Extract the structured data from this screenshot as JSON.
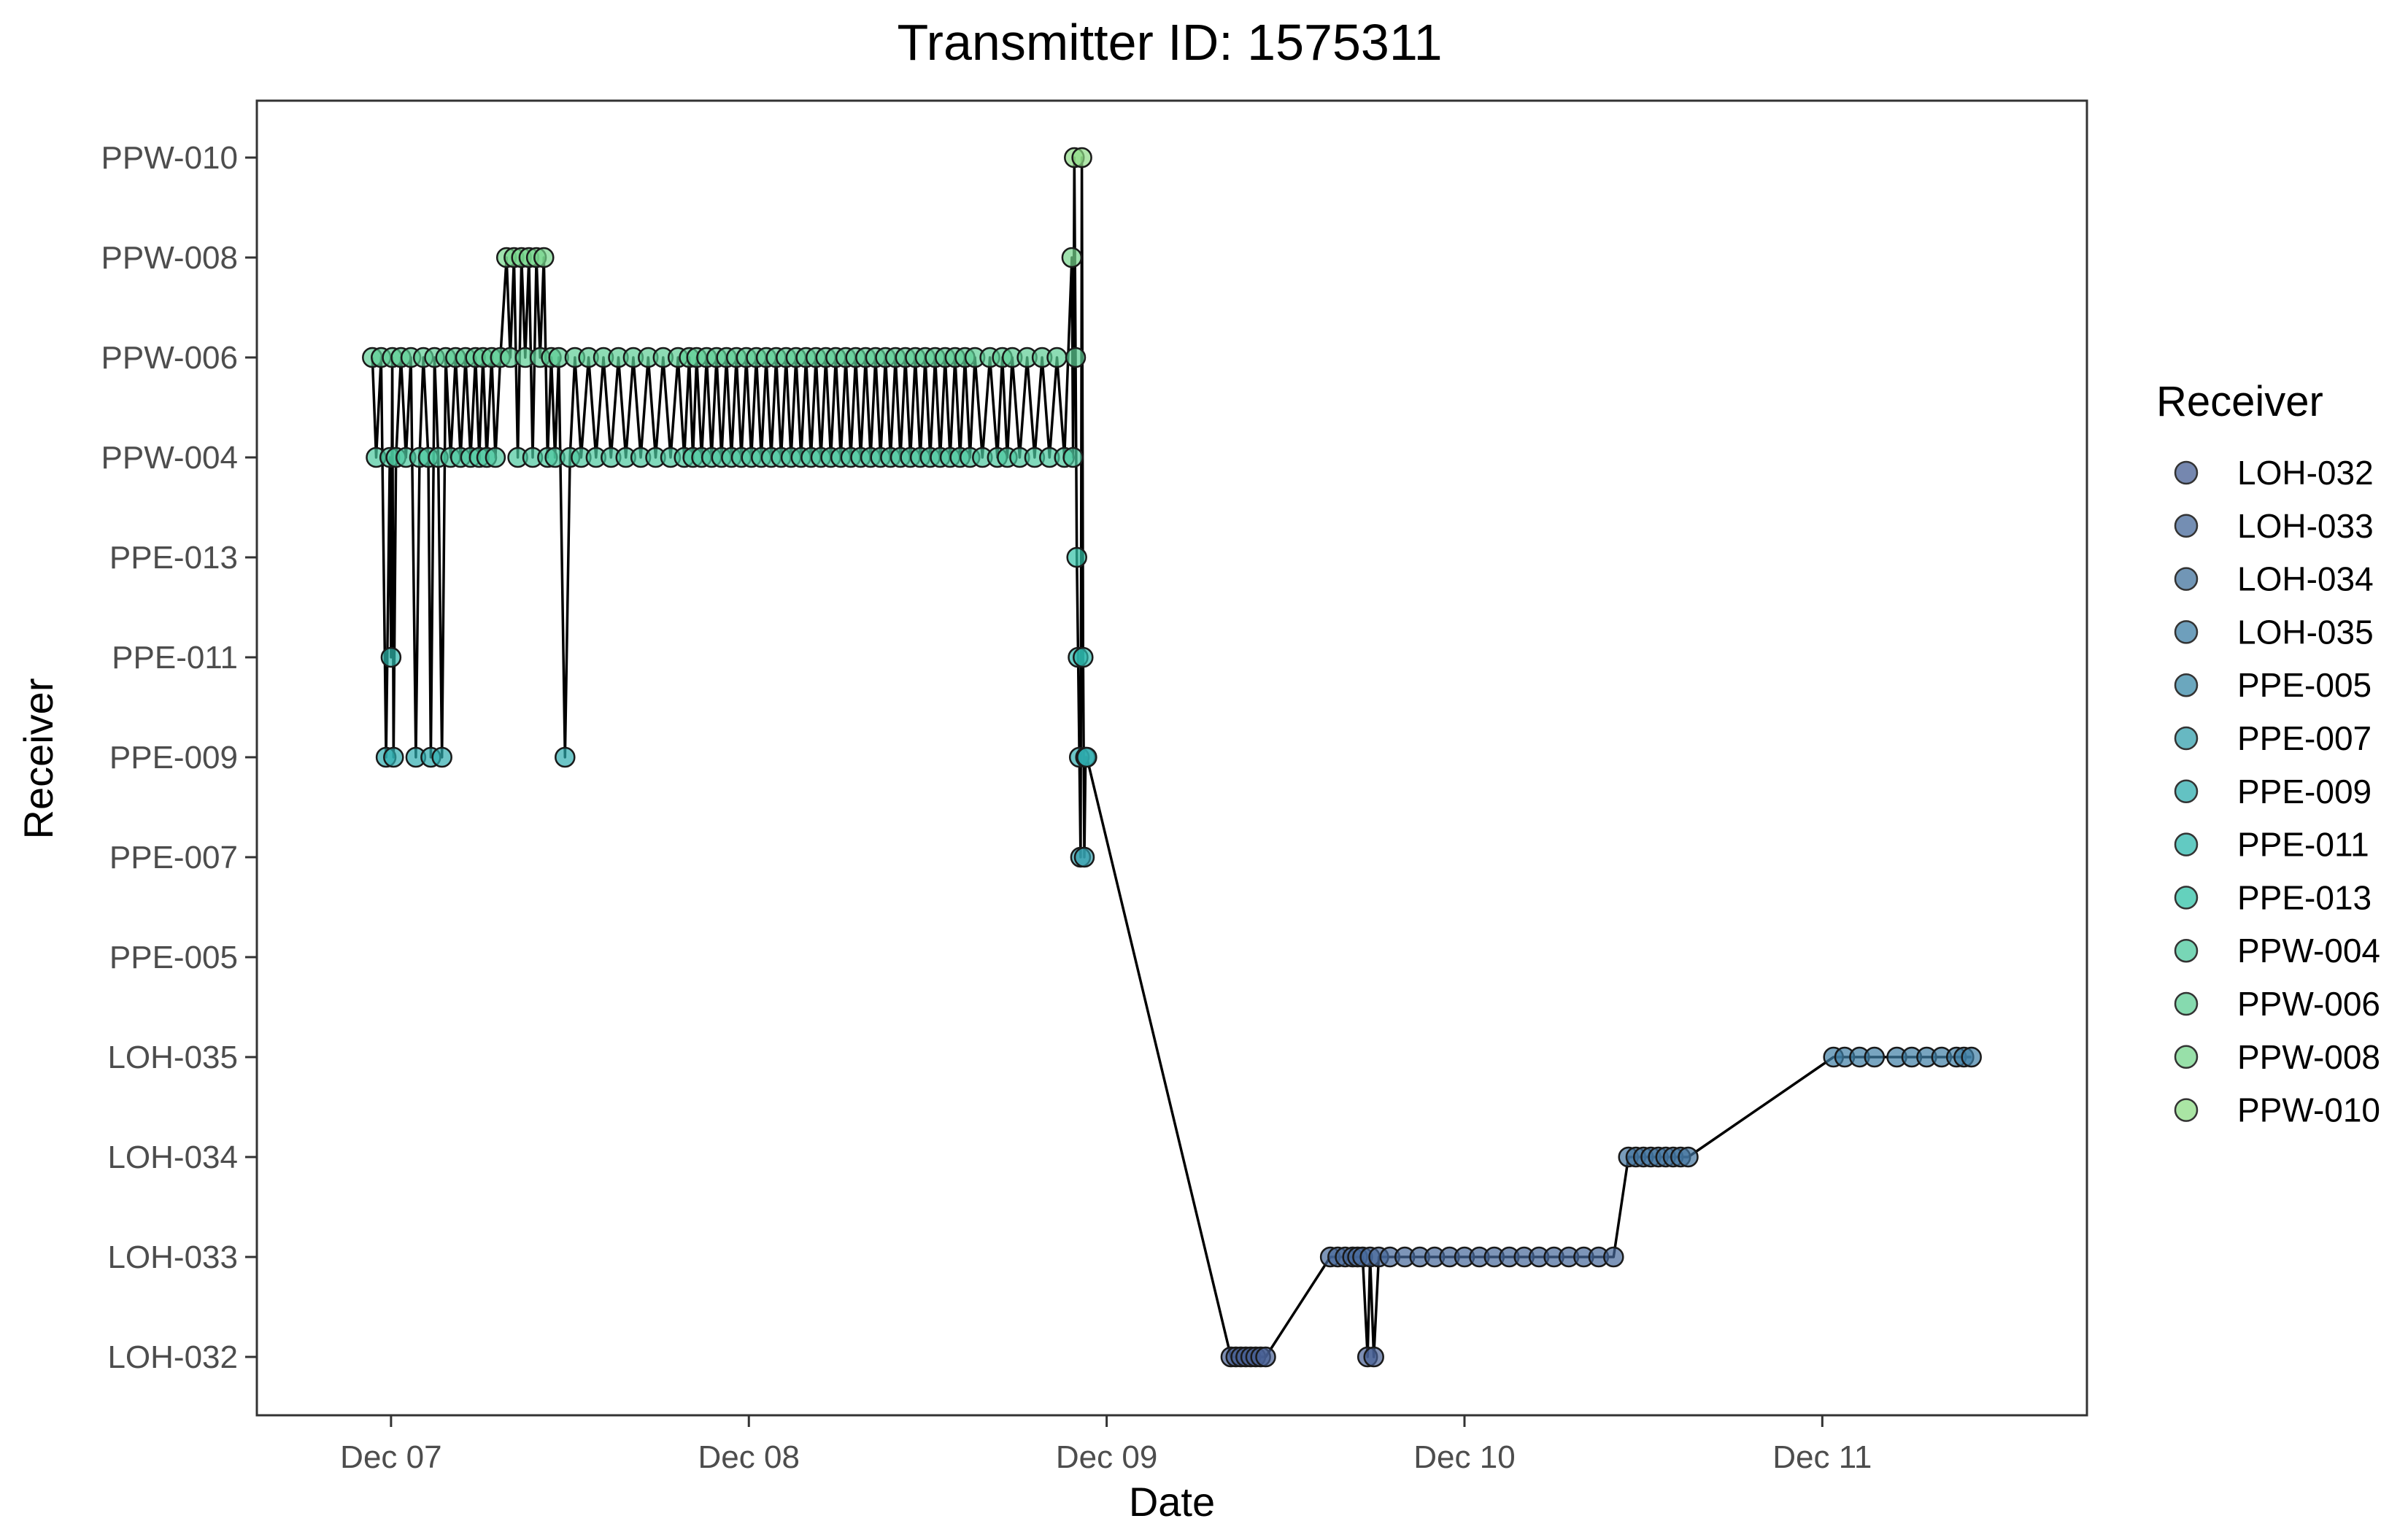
{
  "chart_data": {
    "type": "scatter",
    "title": "Transmitter ID: 1575311",
    "xlabel": "Date",
    "ylabel": "Receiver",
    "x_unit": "date",
    "xlim": [
      "2023-12-06T15:00",
      "2023-12-11T17:45"
    ],
    "x_ticks": [
      {
        "date": "2023-12-07T00:00",
        "label": "Dec 07"
      },
      {
        "date": "2023-12-08T00:00",
        "label": "Dec 08"
      },
      {
        "date": "2023-12-09T00:00",
        "label": "Dec 09"
      },
      {
        "date": "2023-12-10T00:00",
        "label": "Dec 10"
      },
      {
        "date": "2023-12-11T00:00",
        "label": "Dec 11"
      }
    ],
    "categories": [
      "LOH-032",
      "LOH-033",
      "LOH-034",
      "LOH-035",
      "PPE-005",
      "PPE-007",
      "PPE-009",
      "PPE-011",
      "PPE-013",
      "PPW-004",
      "PPW-006",
      "PPW-008",
      "PPW-010"
    ],
    "grid": false,
    "legend": {
      "title": "Receiver",
      "position": "right",
      "colors": [
        "#475f94",
        "#46689a",
        "#42739e",
        "#3e7fa5",
        "#3a8aa8",
        "#34a0ae",
        "#2fadaf",
        "#2db8ad",
        "#30c2a7",
        "#4bc89e",
        "#5dcd94",
        "#76d58c",
        "#8edc86"
      ]
    },
    "series": [
      {
        "points": [
          [
            "2023-12-06T22:45",
            "PPW-006"
          ],
          [
            "2023-12-06T23:00",
            "PPW-004"
          ],
          [
            "2023-12-06T23:20",
            "PPW-006"
          ],
          [
            "2023-12-06T23:40",
            "PPE-009"
          ],
          [
            "2023-12-06T23:55",
            "PPW-004"
          ],
          [
            "2023-12-07T00:00",
            "PPE-011"
          ],
          [
            "2023-12-07T00:05",
            "PPW-006"
          ],
          [
            "2023-12-07T00:10",
            "PPE-009"
          ],
          [
            "2023-12-07T00:20",
            "PPW-004"
          ],
          [
            "2023-12-07T00:40",
            "PPW-006"
          ],
          [
            "2023-12-07T01:00",
            "PPW-004"
          ],
          [
            "2023-12-07T01:20",
            "PPW-006"
          ],
          [
            "2023-12-07T01:40",
            "PPE-009"
          ],
          [
            "2023-12-07T01:55",
            "PPW-004"
          ],
          [
            "2023-12-07T02:10",
            "PPW-006"
          ],
          [
            "2023-12-07T02:30",
            "PPW-004"
          ],
          [
            "2023-12-07T02:40",
            "PPE-009"
          ],
          [
            "2023-12-07T02:55",
            "PPW-006"
          ],
          [
            "2023-12-07T03:10",
            "PPW-004"
          ],
          [
            "2023-12-07T03:25",
            "PPE-009"
          ],
          [
            "2023-12-07T03:40",
            "PPW-006"
          ],
          [
            "2023-12-07T04:00",
            "PPW-004"
          ],
          [
            "2023-12-07T04:20",
            "PPW-006"
          ],
          [
            "2023-12-07T04:40",
            "PPW-004"
          ],
          [
            "2023-12-07T05:00",
            "PPW-006"
          ],
          [
            "2023-12-07T05:20",
            "PPW-004"
          ],
          [
            "2023-12-07T05:40",
            "PPW-006"
          ],
          [
            "2023-12-07T05:55",
            "PPW-004"
          ],
          [
            "2023-12-07T06:10",
            "PPW-006"
          ],
          [
            "2023-12-07T06:25",
            "PPW-004"
          ],
          [
            "2023-12-07T06:45",
            "PPW-006"
          ],
          [
            "2023-12-07T07:00",
            "PPW-004"
          ],
          [
            "2023-12-07T07:20",
            "PPW-006"
          ],
          [
            "2023-12-07T07:45",
            "PPW-008"
          ],
          [
            "2023-12-07T08:00",
            "PPW-006"
          ],
          [
            "2023-12-07T08:15",
            "PPW-008"
          ],
          [
            "2023-12-07T08:30",
            "PPW-004"
          ],
          [
            "2023-12-07T08:45",
            "PPW-008"
          ],
          [
            "2023-12-07T09:00",
            "PPW-006"
          ],
          [
            "2023-12-07T09:15",
            "PPW-008"
          ],
          [
            "2023-12-07T09:30",
            "PPW-004"
          ],
          [
            "2023-12-07T09:45",
            "PPW-008"
          ],
          [
            "2023-12-07T10:00",
            "PPW-006"
          ],
          [
            "2023-12-07T10:15",
            "PPW-008"
          ],
          [
            "2023-12-07T10:30",
            "PPW-004"
          ],
          [
            "2023-12-07T10:45",
            "PPW-006"
          ],
          [
            "2023-12-07T11:00",
            "PPW-004"
          ],
          [
            "2023-12-07T11:15",
            "PPW-006"
          ],
          [
            "2023-12-07T11:40",
            "PPE-009"
          ],
          [
            "2023-12-07T12:00",
            "PPW-004"
          ],
          [
            "2023-12-07T12:20",
            "PPW-006"
          ],
          [
            "2023-12-07T12:45",
            "PPW-004"
          ],
          [
            "2023-12-07T13:15",
            "PPW-006"
          ],
          [
            "2023-12-07T13:45",
            "PPW-004"
          ],
          [
            "2023-12-07T14:15",
            "PPW-006"
          ],
          [
            "2023-12-07T14:45",
            "PPW-004"
          ],
          [
            "2023-12-07T15:15",
            "PPW-006"
          ],
          [
            "2023-12-07T15:45",
            "PPW-004"
          ],
          [
            "2023-12-07T16:15",
            "PPW-006"
          ],
          [
            "2023-12-07T16:45",
            "PPW-004"
          ],
          [
            "2023-12-07T17:15",
            "PPW-006"
          ],
          [
            "2023-12-07T17:45",
            "PPW-004"
          ],
          [
            "2023-12-07T18:15",
            "PPW-006"
          ],
          [
            "2023-12-07T18:45",
            "PPW-004"
          ],
          [
            "2023-12-07T19:15",
            "PPW-006"
          ],
          [
            "2023-12-07T19:40",
            "PPW-004"
          ],
          [
            "2023-12-07T20:00",
            "PPW-006"
          ],
          [
            "2023-12-07T20:15",
            "PPW-004"
          ],
          [
            "2023-12-07T20:30",
            "PPW-006"
          ],
          [
            "2023-12-07T20:50",
            "PPW-004"
          ],
          [
            "2023-12-07T21:10",
            "PPW-006"
          ],
          [
            "2023-12-07T21:30",
            "PPW-004"
          ],
          [
            "2023-12-07T21:50",
            "PPW-006"
          ],
          [
            "2023-12-07T22:10",
            "PPW-004"
          ],
          [
            "2023-12-07T22:30",
            "PPW-006"
          ],
          [
            "2023-12-07T22:50",
            "PPW-004"
          ],
          [
            "2023-12-07T23:10",
            "PPW-006"
          ],
          [
            "2023-12-07T23:30",
            "PPW-004"
          ],
          [
            "2023-12-07T23:50",
            "PPW-006"
          ],
          [
            "2023-12-08T00:10",
            "PPW-004"
          ],
          [
            "2023-12-08T00:30",
            "PPW-006"
          ],
          [
            "2023-12-08T00:50",
            "PPW-004"
          ],
          [
            "2023-12-08T01:10",
            "PPW-006"
          ],
          [
            "2023-12-08T01:30",
            "PPW-004"
          ],
          [
            "2023-12-08T01:50",
            "PPW-006"
          ],
          [
            "2023-12-08T02:10",
            "PPW-004"
          ],
          [
            "2023-12-08T02:30",
            "PPW-006"
          ],
          [
            "2023-12-08T02:50",
            "PPW-004"
          ],
          [
            "2023-12-08T03:10",
            "PPW-006"
          ],
          [
            "2023-12-08T03:30",
            "PPW-004"
          ],
          [
            "2023-12-08T03:50",
            "PPW-006"
          ],
          [
            "2023-12-08T04:10",
            "PPW-004"
          ],
          [
            "2023-12-08T04:30",
            "PPW-006"
          ],
          [
            "2023-12-08T04:50",
            "PPW-004"
          ],
          [
            "2023-12-08T05:10",
            "PPW-006"
          ],
          [
            "2023-12-08T05:30",
            "PPW-004"
          ],
          [
            "2023-12-08T05:50",
            "PPW-006"
          ],
          [
            "2023-12-08T06:10",
            "PPW-004"
          ],
          [
            "2023-12-08T06:30",
            "PPW-006"
          ],
          [
            "2023-12-08T06:50",
            "PPW-004"
          ],
          [
            "2023-12-08T07:10",
            "PPW-006"
          ],
          [
            "2023-12-08T07:30",
            "PPW-004"
          ],
          [
            "2023-12-08T07:50",
            "PPW-006"
          ],
          [
            "2023-12-08T08:10",
            "PPW-004"
          ],
          [
            "2023-12-08T08:30",
            "PPW-006"
          ],
          [
            "2023-12-08T08:50",
            "PPW-004"
          ],
          [
            "2023-12-08T09:10",
            "PPW-006"
          ],
          [
            "2023-12-08T09:30",
            "PPW-004"
          ],
          [
            "2023-12-08T09:50",
            "PPW-006"
          ],
          [
            "2023-12-08T10:10",
            "PPW-004"
          ],
          [
            "2023-12-08T10:30",
            "PPW-006"
          ],
          [
            "2023-12-08T10:50",
            "PPW-004"
          ],
          [
            "2023-12-08T11:10",
            "PPW-006"
          ],
          [
            "2023-12-08T11:30",
            "PPW-004"
          ],
          [
            "2023-12-08T11:50",
            "PPW-006"
          ],
          [
            "2023-12-08T12:10",
            "PPW-004"
          ],
          [
            "2023-12-08T12:30",
            "PPW-006"
          ],
          [
            "2023-12-08T12:50",
            "PPW-004"
          ],
          [
            "2023-12-08T13:10",
            "PPW-006"
          ],
          [
            "2023-12-08T13:30",
            "PPW-004"
          ],
          [
            "2023-12-08T13:50",
            "PPW-006"
          ],
          [
            "2023-12-08T14:10",
            "PPW-004"
          ],
          [
            "2023-12-08T14:30",
            "PPW-006"
          ],
          [
            "2023-12-08T14:50",
            "PPW-004"
          ],
          [
            "2023-12-08T15:10",
            "PPW-006"
          ],
          [
            "2023-12-08T15:40",
            "PPW-004"
          ],
          [
            "2023-12-08T16:10",
            "PPW-006"
          ],
          [
            "2023-12-08T16:40",
            "PPW-004"
          ],
          [
            "2023-12-08T17:00",
            "PPW-006"
          ],
          [
            "2023-12-08T17:20",
            "PPW-004"
          ],
          [
            "2023-12-08T17:40",
            "PPW-006"
          ],
          [
            "2023-12-08T18:10",
            "PPW-004"
          ],
          [
            "2023-12-08T18:40",
            "PPW-006"
          ],
          [
            "2023-12-08T19:10",
            "PPW-004"
          ],
          [
            "2023-12-08T19:40",
            "PPW-006"
          ],
          [
            "2023-12-08T20:10",
            "PPW-004"
          ],
          [
            "2023-12-08T20:40",
            "PPW-006"
          ],
          [
            "2023-12-08T21:10",
            "PPW-004"
          ],
          [
            "2023-12-08T21:40",
            "PPW-008"
          ],
          [
            "2023-12-08T21:45",
            "PPW-004"
          ],
          [
            "2023-12-08T21:50",
            "PPW-010"
          ],
          [
            "2023-12-08T21:55",
            "PPW-006"
          ],
          [
            "2023-12-08T22:00",
            "PPE-013"
          ],
          [
            "2023-12-08T22:05",
            "PPE-011"
          ],
          [
            "2023-12-08T22:10",
            "PPE-009"
          ],
          [
            "2023-12-08T22:15",
            "PPE-007"
          ],
          [
            "2023-12-08T22:20",
            "PPW-010"
          ],
          [
            "2023-12-08T22:25",
            "PPE-011"
          ],
          [
            "2023-12-08T22:30",
            "PPE-007"
          ],
          [
            "2023-12-08T22:35",
            "PPE-009"
          ],
          [
            "2023-12-08T22:40",
            "PPE-009"
          ],
          [
            "2023-12-09T08:20",
            "LOH-032"
          ],
          [
            "2023-12-09T08:40",
            "LOH-032"
          ],
          [
            "2023-12-09T09:00",
            "LOH-032"
          ],
          [
            "2023-12-09T09:20",
            "LOH-032"
          ],
          [
            "2023-12-09T09:40",
            "LOH-032"
          ],
          [
            "2023-12-09T10:00",
            "LOH-032"
          ],
          [
            "2023-12-09T10:20",
            "LOH-032"
          ],
          [
            "2023-12-09T10:40",
            "LOH-032"
          ],
          [
            "2023-12-09T15:00",
            "LOH-033"
          ],
          [
            "2023-12-09T15:30",
            "LOH-033"
          ],
          [
            "2023-12-09T16:00",
            "LOH-033"
          ],
          [
            "2023-12-09T16:30",
            "LOH-033"
          ],
          [
            "2023-12-09T16:50",
            "LOH-033"
          ],
          [
            "2023-12-09T17:10",
            "LOH-033"
          ],
          [
            "2023-12-09T17:30",
            "LOH-032"
          ],
          [
            "2023-12-09T17:40",
            "LOH-033"
          ],
          [
            "2023-12-09T17:55",
            "LOH-032"
          ],
          [
            "2023-12-09T18:15",
            "LOH-033"
          ],
          [
            "2023-12-09T19:00",
            "LOH-033"
          ],
          [
            "2023-12-09T20:00",
            "LOH-033"
          ],
          [
            "2023-12-09T21:00",
            "LOH-033"
          ],
          [
            "2023-12-09T22:00",
            "LOH-033"
          ],
          [
            "2023-12-09T23:00",
            "LOH-033"
          ],
          [
            "2023-12-10T00:00",
            "LOH-033"
          ],
          [
            "2023-12-10T01:00",
            "LOH-033"
          ],
          [
            "2023-12-10T02:00",
            "LOH-033"
          ],
          [
            "2023-12-10T03:00",
            "LOH-033"
          ],
          [
            "2023-12-10T04:00",
            "LOH-033"
          ],
          [
            "2023-12-10T05:00",
            "LOH-033"
          ],
          [
            "2023-12-10T06:00",
            "LOH-033"
          ],
          [
            "2023-12-10T07:00",
            "LOH-033"
          ],
          [
            "2023-12-10T08:00",
            "LOH-033"
          ],
          [
            "2023-12-10T09:00",
            "LOH-033"
          ],
          [
            "2023-12-10T10:00",
            "LOH-033"
          ],
          [
            "2023-12-10T11:00",
            "LOH-034"
          ],
          [
            "2023-12-10T11:30",
            "LOH-034"
          ],
          [
            "2023-12-10T12:00",
            "LOH-034"
          ],
          [
            "2023-12-10T12:30",
            "LOH-034"
          ],
          [
            "2023-12-10T13:00",
            "LOH-034"
          ],
          [
            "2023-12-10T13:30",
            "LOH-034"
          ],
          [
            "2023-12-10T14:00",
            "LOH-034"
          ],
          [
            "2023-12-10T14:30",
            "LOH-034"
          ],
          [
            "2023-12-10T15:00",
            "LOH-034"
          ],
          [
            "2023-12-11T00:45",
            "LOH-035"
          ],
          [
            "2023-12-11T01:30",
            "LOH-035"
          ],
          [
            "2023-12-11T02:30",
            "LOH-035"
          ],
          [
            "2023-12-11T03:30",
            "LOH-035"
          ],
          [
            "2023-12-11T05:00",
            "LOH-035"
          ],
          [
            "2023-12-11T06:00",
            "LOH-035"
          ],
          [
            "2023-12-11T07:00",
            "LOH-035"
          ],
          [
            "2023-12-11T08:00",
            "LOH-035"
          ],
          [
            "2023-12-11T09:00",
            "LOH-035"
          ],
          [
            "2023-12-11T09:30",
            "LOH-035"
          ],
          [
            "2023-12-11T10:00",
            "LOH-035"
          ]
        ]
      }
    ]
  }
}
